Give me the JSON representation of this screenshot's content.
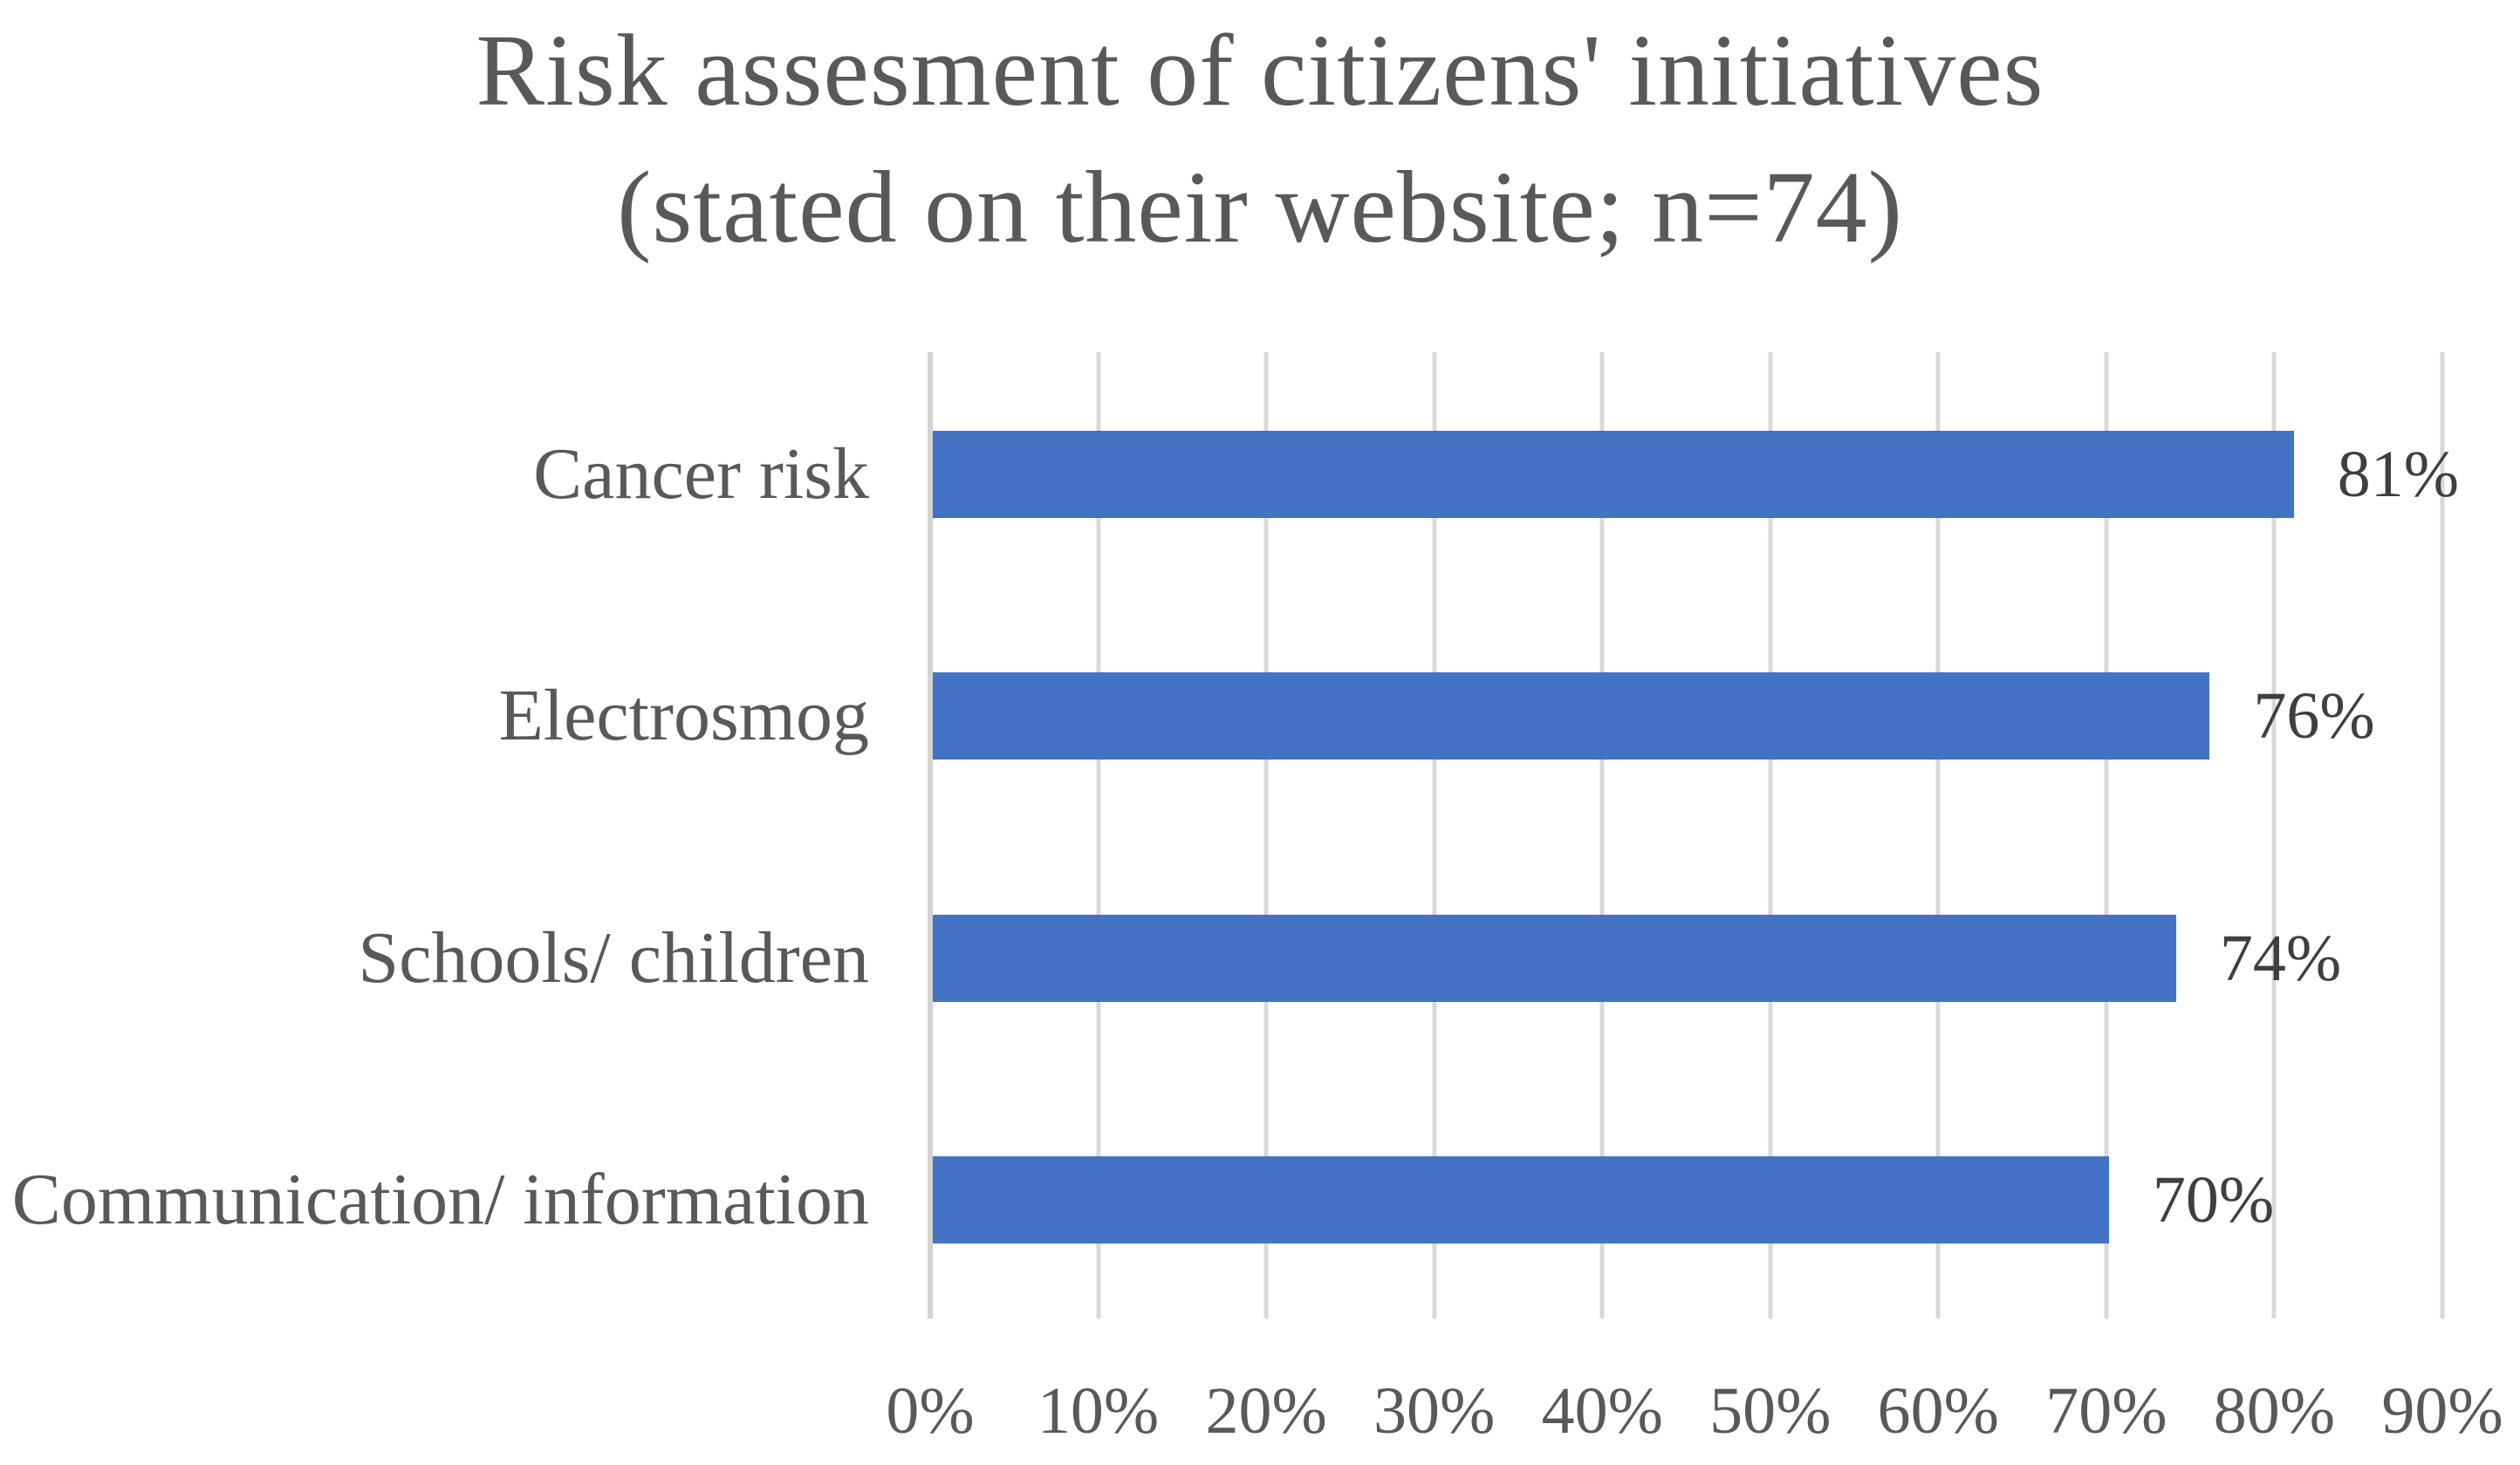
{
  "chart_data": {
    "type": "bar",
    "orientation": "horizontal",
    "title_line1": "Risk assesment of citizens' initiatives",
    "title_line2": "(stated on their website; n=74)",
    "categories": [
      "Cancer risk",
      "Electrosmog",
      "Schools/ children",
      "Communication/ information"
    ],
    "values": [
      81,
      76,
      74,
      70
    ],
    "data_labels": [
      "81%",
      "76%",
      "74%",
      "70%"
    ],
    "x_ticks": [
      "0%",
      "10%",
      "20%",
      "30%",
      "40%",
      "50%",
      "60%",
      "70%",
      "80%",
      "90%"
    ],
    "xlim": [
      0,
      90
    ],
    "grid": "vertical-only",
    "legend": "none",
    "colors": {
      "bar": "#4472C4",
      "gridline": "#D9D9D9",
      "axis_line": "#D3D3D3",
      "title_text": "#595959",
      "category_text": "#595959",
      "tick_text": "#595959",
      "data_label_text": "#3F3F3F",
      "background": "#FFFFFF"
    }
  }
}
